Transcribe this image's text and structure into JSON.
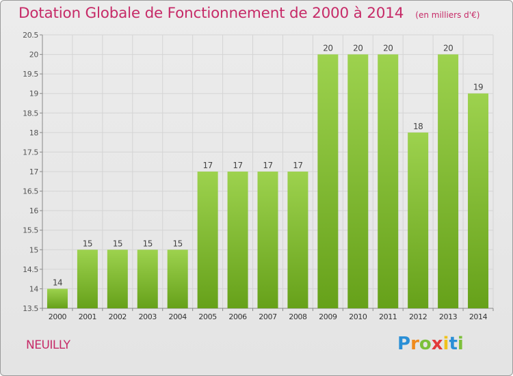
{
  "title": "Dotation Globale de Fonctionnement de 2000 à 2014",
  "subtitle": "(en milliers d'€)",
  "commune": "NEUILLY",
  "logo": {
    "letters": [
      "P",
      "r",
      "o",
      "x",
      "i",
      "t",
      "i"
    ],
    "colors": [
      "#2a8fd6",
      "#f08a1c",
      "#7cc03a",
      "#e23a3a",
      "#f0c21c",
      "#2a8fd6",
      "#7cc03a"
    ]
  },
  "colors": {
    "bar_light": "#9dd24e",
    "bar_dark": "#66a11a",
    "title": "#c62a67",
    "grid": "#d4d4d4"
  },
  "chart_data": {
    "type": "bar",
    "categories": [
      "2000",
      "2001",
      "2002",
      "2003",
      "2004",
      "2005",
      "2006",
      "2007",
      "2008",
      "2009",
      "2010",
      "2011",
      "2012",
      "2013",
      "2014"
    ],
    "values": [
      14,
      15,
      15,
      15,
      15,
      17,
      17,
      17,
      17,
      20,
      20,
      20,
      18,
      20,
      19
    ],
    "data_labels": [
      "14",
      "15",
      "15",
      "15",
      "15",
      "17",
      "17",
      "17",
      "17",
      "20",
      "20",
      "20",
      "18",
      "20",
      "19"
    ],
    "ylim": [
      13.5,
      20.5
    ],
    "yticks": [
      "13.5",
      "14",
      "14.5",
      "15",
      "15.5",
      "16",
      "16.5",
      "17",
      "17.5",
      "18",
      "18.5",
      "19",
      "19.5",
      "20",
      "20.5"
    ],
    "xlabel": "",
    "ylabel": "",
    "grid": true
  }
}
